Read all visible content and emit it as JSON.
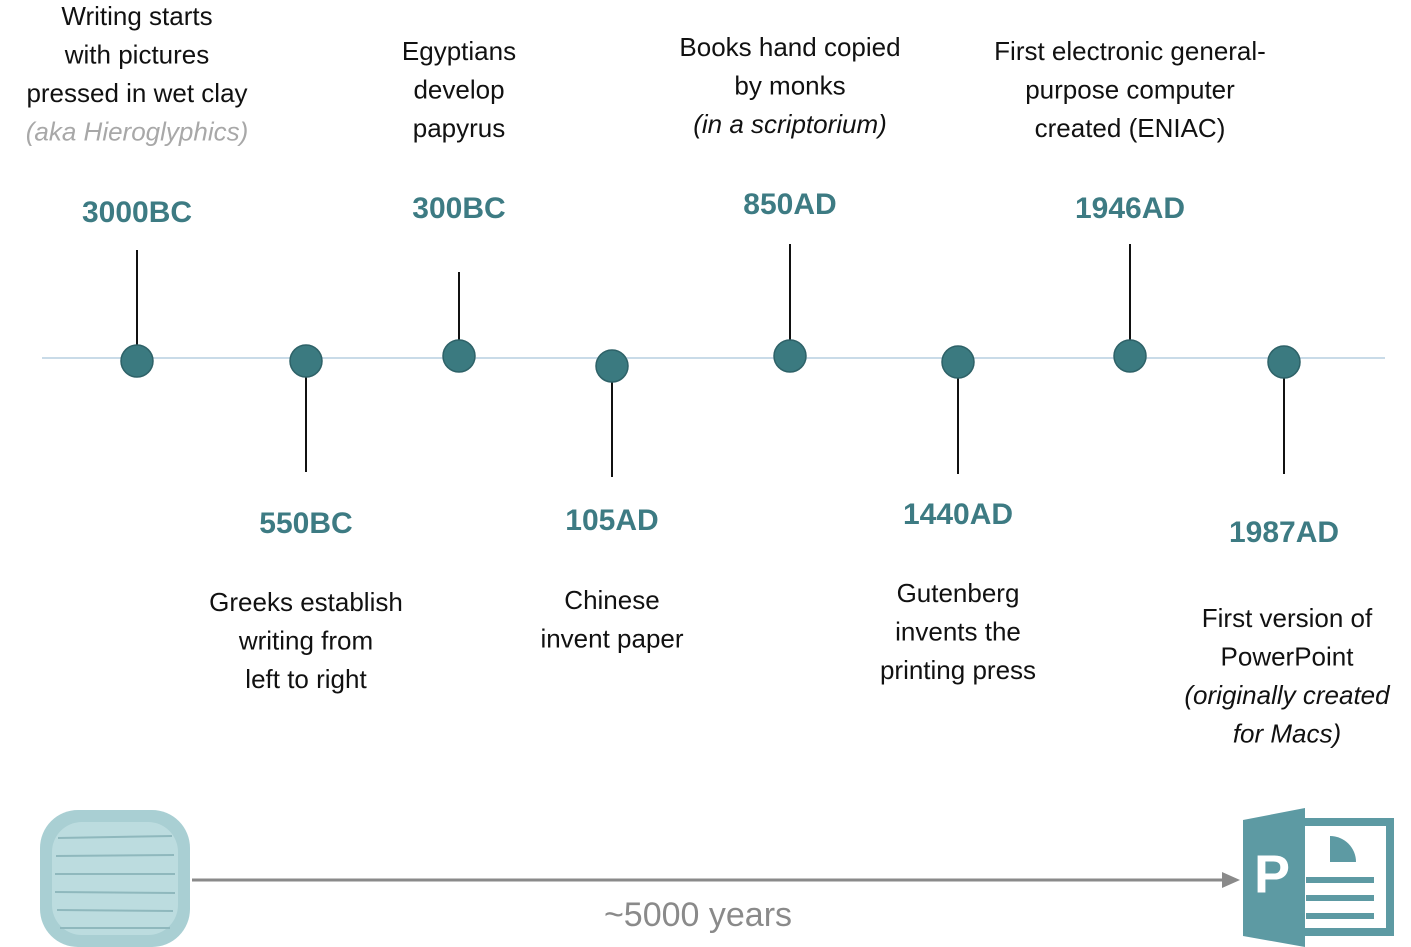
{
  "events": [
    {
      "date": "3000BC",
      "text": [
        "Writing starts",
        "with pictures",
        "pressed in wet clay"
      ],
      "note": [
        "(aka Hieroglyphics)"
      ]
    },
    {
      "date": "550BC",
      "text": [
        "Greeks establish",
        "writing from",
        "left to right"
      ],
      "note": []
    },
    {
      "date": "300BC",
      "text": [
        "Egyptians",
        "develop",
        "papyrus"
      ],
      "note": []
    },
    {
      "date": "105AD",
      "text": [
        "Chinese",
        "invent paper"
      ],
      "note": []
    },
    {
      "date": "850AD",
      "text": [
        "Books hand copied",
        "by monks"
      ],
      "note": [
        "(in a scriptorium)"
      ]
    },
    {
      "date": "1440AD",
      "text": [
        "Gutenberg",
        "invents the",
        "printing press"
      ],
      "note": []
    },
    {
      "date": "1946AD",
      "text": [
        "First electronic general-",
        "purpose computer",
        "created (ENIAC)"
      ],
      "note": []
    },
    {
      "date": "1987AD",
      "text": [
        "First version of",
        "PowerPoint"
      ],
      "note": [
        "(originally created",
        "for Macs)"
      ]
    }
  ],
  "span_label": "~5000 years"
}
